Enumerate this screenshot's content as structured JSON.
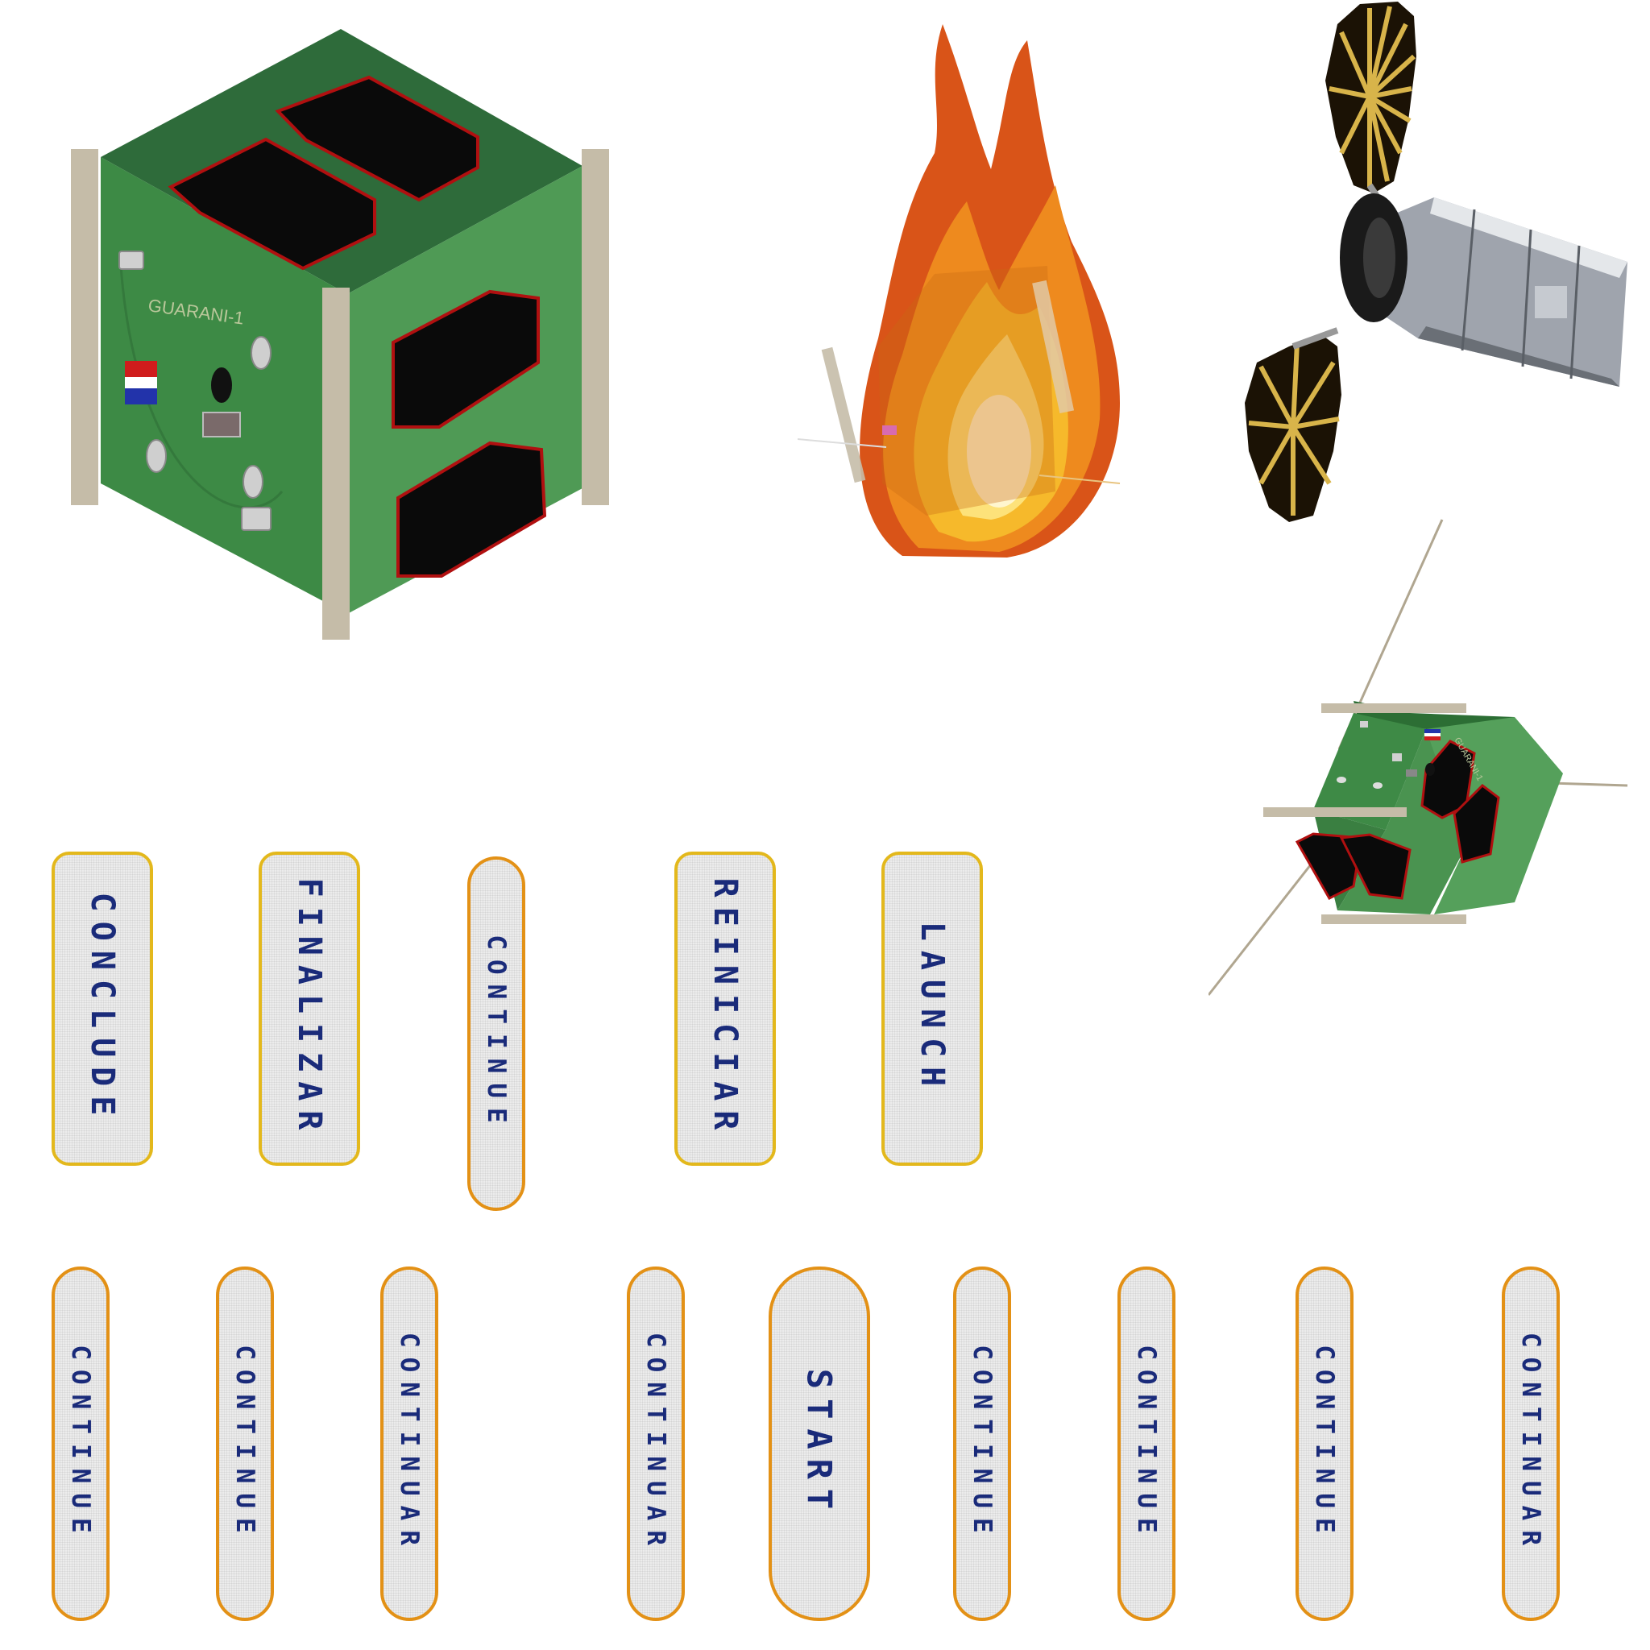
{
  "colors": {
    "button_fill": "#ececec",
    "button_text": "#1a2b7a",
    "border_gold": "#e3b81c",
    "border_orange": "#e39116",
    "cube_green_top": "#2e6b3a",
    "cube_green_front": "#3d8a45",
    "cube_green_right": "#4f9a55",
    "cube_rail": "#c5bca8",
    "panel_black": "#0a0a0a",
    "panel_outline": "#b01010"
  },
  "sprites": {
    "cubesat_large": {
      "icon": "cubesat-icon",
      "label": "GUARANI-1"
    },
    "cubesat_burning": {
      "icon": "burning-cubesat-icon"
    },
    "cargo_spacecraft": {
      "icon": "cargo-spacecraft-icon"
    },
    "cubesat_small": {
      "icon": "cubesat-with-antennas-icon",
      "label": "GUARANI-1"
    }
  },
  "buttons": {
    "row1": [
      {
        "label": "CONCLUDE"
      },
      {
        "label": "FINALIZAR"
      },
      {
        "label": "CONTINUE"
      },
      {
        "label": "REINICIAR"
      },
      {
        "label": "LAUNCH"
      }
    ],
    "row2": [
      {
        "label": "CONTINUE"
      },
      {
        "label": "CONTINUE"
      },
      {
        "label": "CONTINUAR"
      },
      {
        "label": "CONTINUAR"
      },
      {
        "label": "START"
      },
      {
        "label": "CONTINUE"
      },
      {
        "label": "CONTINUE"
      },
      {
        "label": "CONTINUE"
      },
      {
        "label": "CONTINUAR"
      }
    ]
  }
}
